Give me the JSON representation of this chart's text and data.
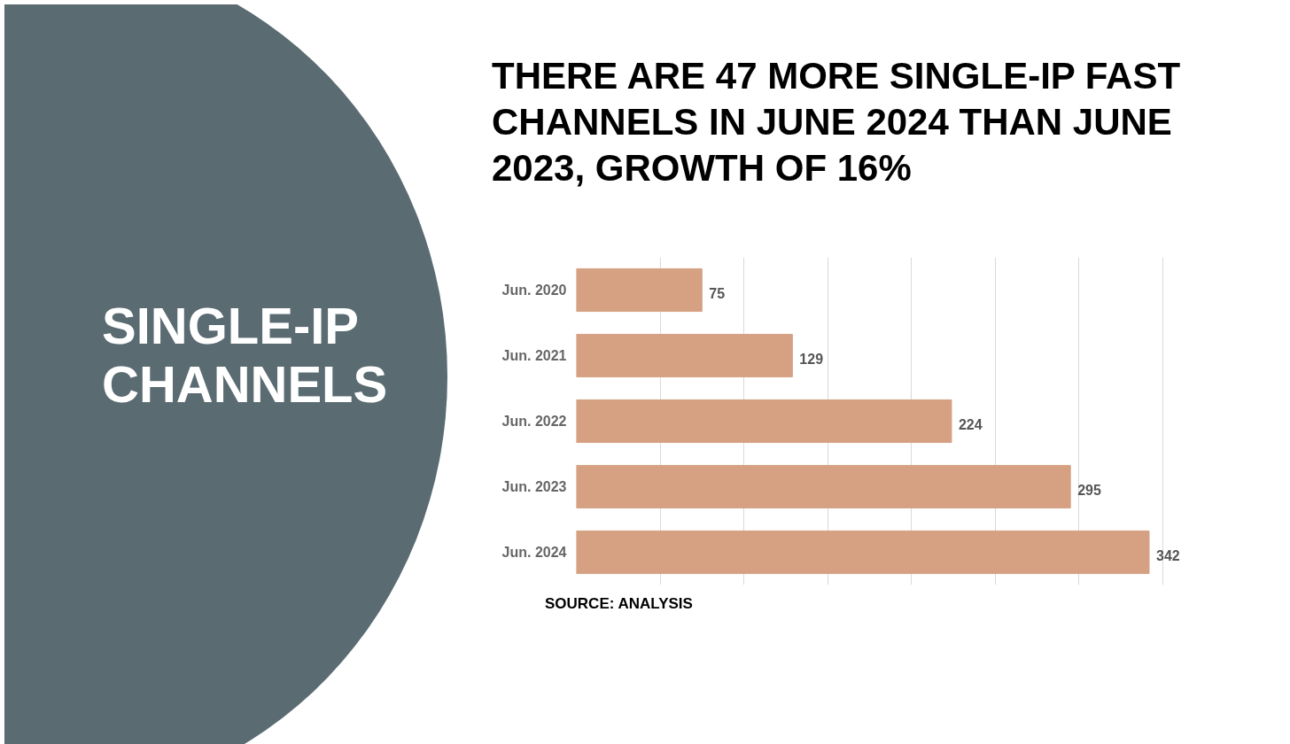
{
  "chart_data": {
    "type": "bar",
    "orientation": "horizontal",
    "title": "THERE ARE 47 MORE SINGLE-IP FAST CHANNELS IN JUNE 2024 THAN JUNE 2023, GROWTH OF 16%",
    "categories": [
      "Jun. 2020",
      "Jun. 2021",
      "Jun. 2022",
      "Jun. 2023",
      "Jun. 2024"
    ],
    "values": [
      75,
      129,
      224,
      295,
      342
    ],
    "color": "#d5a182",
    "grid": "x",
    "tick_labels": "y",
    "data_labels": true,
    "annotations": [
      "SINGLE-IP CHANNELS",
      "SOURCE: ANALYSIS"
    ]
  }
}
